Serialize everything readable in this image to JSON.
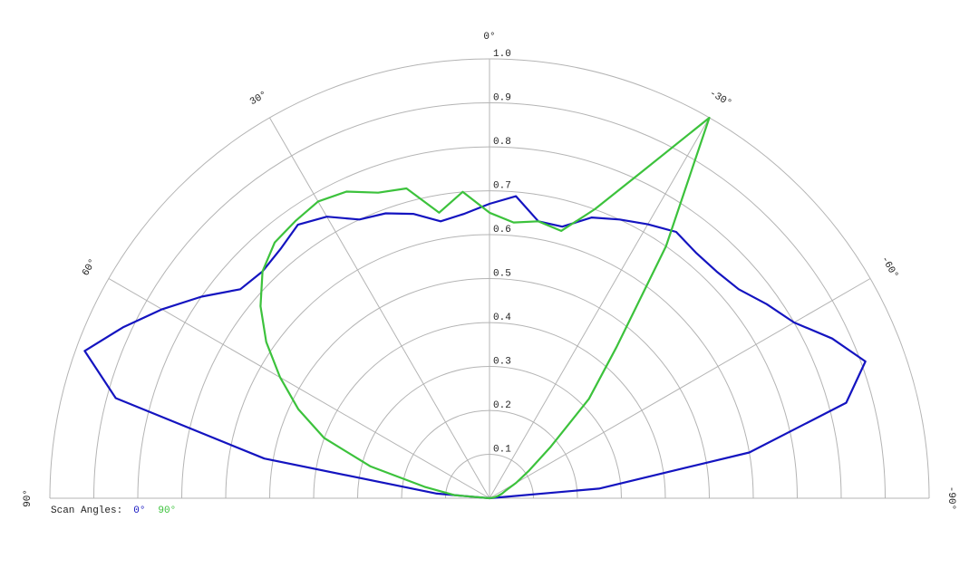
{
  "chart_data": {
    "type": "polar",
    "theta": [
      90,
      85,
      80,
      75,
      70,
      65,
      60,
      55,
      50,
      45,
      40,
      35,
      30,
      25,
      20,
      15,
      10,
      5,
      0,
      -5,
      -10,
      -15,
      -20,
      -25,
      -30,
      -35,
      -40,
      -45,
      -50,
      -55,
      -60,
      -65,
      -70,
      -75,
      -80,
      -85,
      -90
    ],
    "thetaticks": [
      {
        "value": 90,
        "label": "90°"
      },
      {
        "value": 60,
        "label": "60°"
      },
      {
        "value": 30,
        "label": "30°"
      },
      {
        "value": 0,
        "label": "0°"
      },
      {
        "value": -30,
        "label": "-30°"
      },
      {
        "value": -60,
        "label": "-60°"
      },
      {
        "value": -90,
        "label": "-90°"
      }
    ],
    "rlim": [
      0,
      1
    ],
    "rticks": [
      0.1,
      0.2,
      0.3,
      0.4,
      0.5,
      0.6,
      0.7,
      0.8,
      0.9,
      {
        "value": 1,
        "label": "1.0"
      }
    ],
    "grid": true,
    "legend_title": "Scan Angles:",
    "series": [
      {
        "name": "0°",
        "color": "#1414c0",
        "values": [
          0,
          0.12,
          0.52,
          0.88,
          0.98,
          0.92,
          0.86,
          0.8,
          0.74,
          0.73,
          0.74,
          0.76,
          0.74,
          0.7,
          0.69,
          0.67,
          0.64,
          0.65,
          0.67,
          0.69,
          0.64,
          0.64,
          0.68,
          0.7,
          0.72,
          0.74,
          0.73,
          0.73,
          0.74,
          0.77,
          0.8,
          0.86,
          0.91,
          0.84,
          0.6,
          0.25,
          0
        ]
      },
      {
        "name": "90°",
        "color": "#3cc23c",
        "values": [
          0,
          0.08,
          0.15,
          0.28,
          0.4,
          0.48,
          0.55,
          0.62,
          0.68,
          0.73,
          0.76,
          0.77,
          0.78,
          0.77,
          0.74,
          0.73,
          0.66,
          0.7,
          0.65,
          0.63,
          0.64,
          0.63,
          0.7,
          0.82,
          1.0,
          0.7,
          0.45,
          0.32,
          0.18,
          0.11,
          0.07,
          0.04,
          0.03,
          0.02,
          0.01,
          0,
          0
        ]
      }
    ]
  }
}
